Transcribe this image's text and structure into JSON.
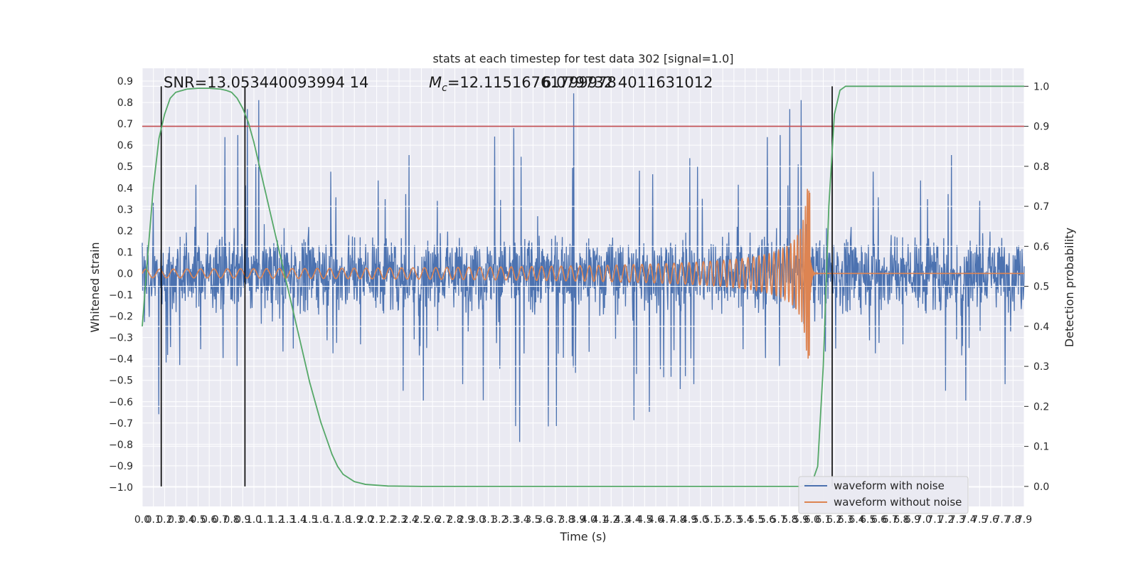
{
  "chart_data": {
    "type": "line",
    "title": "stats at each timestep for test data 302 [signal=1.0]",
    "xlabel": "Time (s)",
    "ylabel_left": "Whitened strain",
    "ylabel_right": "Detection probability",
    "xlim": [
      0.0,
      7.9
    ],
    "ylim_left": [
      -1.09,
      0.96
    ],
    "ylim_right": [
      -0.05,
      1.045
    ],
    "x_ticks": [
      "0.0",
      "0.1",
      "0.2",
      "0.3",
      "0.4",
      "0.5",
      "0.6",
      "0.7",
      "0.8",
      "0.9",
      "1.0",
      "1.1",
      "1.2",
      "1.3",
      "1.4",
      "1.5",
      "1.6",
      "1.7",
      "1.8",
      "1.9",
      "2.0",
      "2.1",
      "2.2",
      "2.3",
      "2.4",
      "2.5",
      "2.6",
      "2.7",
      "2.8",
      "2.9",
      "3.0",
      "3.1",
      "3.2",
      "3.3",
      "3.4",
      "3.5",
      "3.6",
      "3.7",
      "3.8",
      "3.9",
      "4.0",
      "4.1",
      "4.2",
      "4.3",
      "4.4",
      "4.5",
      "4.6",
      "4.7",
      "4.8",
      "4.9",
      "5.0",
      "5.1",
      "5.2",
      "5.3",
      "5.4",
      "5.5",
      "5.6",
      "5.7",
      "5.8",
      "5.9",
      "6.0",
      "6.1",
      "6.2",
      "6.3",
      "6.4",
      "6.5",
      "6.6",
      "6.7",
      "6.8",
      "6.9",
      "7.0",
      "7.1",
      "7.2",
      "7.3",
      "7.4",
      "7.5",
      "7.6",
      "7.7",
      "7.8",
      "7.9"
    ],
    "y_ticks_left": [
      "0.9",
      "0.8",
      "0.7",
      "0.6",
      "0.5",
      "0.4",
      "0.3",
      "0.2",
      "0.1",
      "0.0",
      "−0.1",
      "−0.2",
      "−0.3",
      "−0.4",
      "−0.5",
      "−0.6",
      "−0.7",
      "−0.8",
      "−0.9",
      "−1.0"
    ],
    "y_ticks_right": [
      "1.0",
      "0.9",
      "0.8",
      "0.7",
      "0.6",
      "0.5",
      "0.4",
      "0.3",
      "0.2",
      "0.1",
      "0.0"
    ],
    "threshold_prob": 0.9,
    "vertical_markers_x": [
      0.17,
      0.92,
      6.18
    ],
    "annotations": {
      "snr": "SNR=13.053440093994 14",
      "mc_symbol": "M",
      "mc_sub": "c",
      "mc_value": "=12.11516761799978",
      "mc_overlap": "6.079732 4011631012"
    },
    "series": [
      {
        "name": "waveform with noise",
        "color": "#4c72b0",
        "description_points": "noise, amplitude envelope about ±0.3 with spikes to ±0.85"
      },
      {
        "name": "waveform without noise",
        "color": "#dd8452",
        "chirp": {
          "start_x": 0.0,
          "merger_x": 5.98,
          "start_amp": 0.02,
          "peak_amp": 0.4,
          "peak_min": -0.58
        }
      },
      {
        "name": "detection probability",
        "color": "#55a868",
        "points": [
          [
            0.0,
            0.4
          ],
          [
            0.05,
            0.58
          ],
          [
            0.1,
            0.75
          ],
          [
            0.15,
            0.87
          ],
          [
            0.2,
            0.93
          ],
          [
            0.25,
            0.97
          ],
          [
            0.3,
            0.985
          ],
          [
            0.4,
            0.993
          ],
          [
            0.5,
            0.995
          ],
          [
            0.6,
            0.995
          ],
          [
            0.7,
            0.993
          ],
          [
            0.75,
            0.99
          ],
          [
            0.8,
            0.985
          ],
          [
            0.85,
            0.97
          ],
          [
            0.9,
            0.945
          ],
          [
            0.95,
            0.91
          ],
          [
            1.0,
            0.86
          ],
          [
            1.05,
            0.8
          ],
          [
            1.1,
            0.74
          ],
          [
            1.15,
            0.68
          ],
          [
            1.2,
            0.62
          ],
          [
            1.25,
            0.56
          ],
          [
            1.3,
            0.5
          ],
          [
            1.35,
            0.44
          ],
          [
            1.4,
            0.38
          ],
          [
            1.45,
            0.32
          ],
          [
            1.5,
            0.26
          ],
          [
            1.55,
            0.21
          ],
          [
            1.6,
            0.16
          ],
          [
            1.65,
            0.12
          ],
          [
            1.7,
            0.08
          ],
          [
            1.75,
            0.05
          ],
          [
            1.8,
            0.03
          ],
          [
            1.9,
            0.012
          ],
          [
            2.0,
            0.005
          ],
          [
            2.2,
            0.001
          ],
          [
            2.5,
            0.0
          ],
          [
            5.9,
            0.0
          ],
          [
            6.0,
            0.01
          ],
          [
            6.05,
            0.05
          ],
          [
            6.1,
            0.3
          ],
          [
            6.15,
            0.7
          ],
          [
            6.2,
            0.93
          ],
          [
            6.25,
            0.99
          ],
          [
            6.3,
            1.0
          ],
          [
            7.9,
            1.0
          ]
        ]
      }
    ],
    "legend": {
      "position": "lower-right",
      "entries": [
        {
          "label": "waveform with noise",
          "color": "#4c72b0"
        },
        {
          "label": "waveform without noise",
          "color": "#dd8452"
        }
      ]
    },
    "colors": {
      "plot_background": "#eaeaf2",
      "grid": "#ffffff",
      "threshold": "#c44e52",
      "markers": "#000000"
    }
  }
}
